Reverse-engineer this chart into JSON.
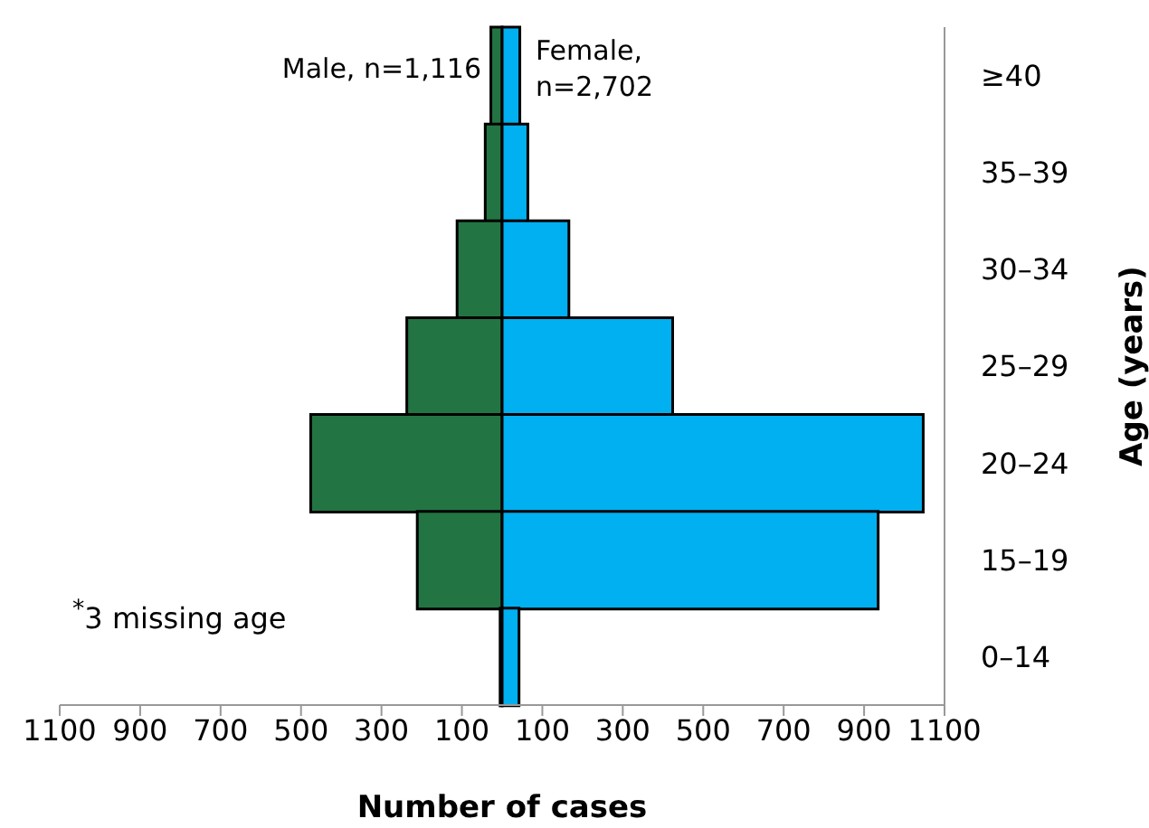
{
  "chart_data": {
    "type": "bar",
    "orientation": "horizontal",
    "stacked": true,
    "categories": [
      "≥40",
      "35–39",
      "30–34",
      "25–29",
      "20–24",
      "15–19",
      "0–14"
    ],
    "series": [
      {
        "name": "Male, n=1,116",
        "color": "#237443",
        "values": [
          -28,
          -42,
          -112,
          -237,
          -476,
          -211,
          -5
        ]
      },
      {
        "name": "Female, n=2,702",
        "color": "#00b0f0",
        "values": [
          44,
          64,
          166,
          424,
          1047,
          935,
          42
        ]
      }
    ],
    "xlim": [
      -1100,
      1100
    ],
    "xticks": [
      {
        "value": -1100,
        "label": "1100"
      },
      {
        "value": -900,
        "label": "900"
      },
      {
        "value": -700,
        "label": "700"
      },
      {
        "value": -500,
        "label": "500"
      },
      {
        "value": -300,
        "label": "300"
      },
      {
        "value": -100,
        "label": "100"
      },
      100,
      300,
      500,
      700,
      900,
      1100
    ],
    "xlabel": "Number of cases",
    "ylabel": "Age (years)",
    "annotations": [
      "$^{*}$3 missing age"
    ]
  }
}
